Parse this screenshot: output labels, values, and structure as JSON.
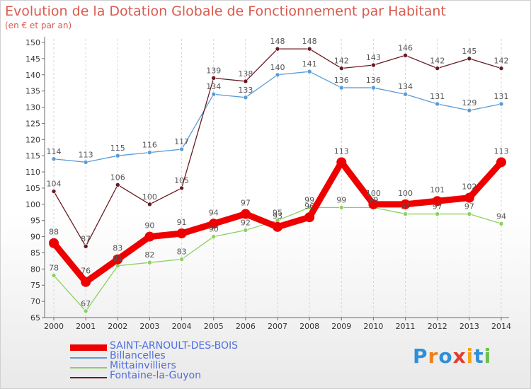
{
  "header": {
    "title": "Evolution de la Dotation Globale de Fonctionnement par Habitant",
    "subtitle": "(en € et par an)"
  },
  "brand": {
    "letters": [
      "P",
      "r",
      "o",
      "x",
      "i",
      "t",
      "i"
    ]
  },
  "colors": {
    "title": "#d95a4e",
    "axis": "#6b6b6b",
    "grid": "#d5d5d5",
    "label": "#555555",
    "legend_text": "#4f6de0",
    "brand": [
      "#2f8fd8",
      "#f07f1d",
      "#2f8fd8",
      "#e23c2c",
      "#f5a21b",
      "#2f8fd8",
      "#6cc04a"
    ]
  },
  "chart_data": {
    "type": "line",
    "title": "Evolution de la Dotation Globale de Fonctionnement par Habitant",
    "subtitle": "(en € et par an)",
    "xlabel": "",
    "ylabel": "",
    "x": [
      "2000",
      "2001",
      "2002",
      "2003",
      "2004",
      "2005",
      "2006",
      "2007",
      "2008",
      "2009",
      "2010",
      "2011",
      "2012",
      "2013",
      "2014"
    ],
    "ylim": [
      65,
      150
    ],
    "yticks": [
      65,
      70,
      75,
      80,
      85,
      90,
      95,
      100,
      105,
      110,
      115,
      120,
      125,
      130,
      135,
      140,
      145,
      150
    ],
    "grid": "vertical dashed",
    "series": [
      {
        "name": "Billancelles",
        "color": "#5b9bd5",
        "emphasis": false,
        "values": [
          114,
          113,
          115,
          116,
          117,
          134,
          133,
          140,
          141,
          136,
          136,
          134,
          131,
          129,
          131
        ]
      },
      {
        "name": "Fontaine-la-Guyon",
        "color": "#6b1a22",
        "emphasis": false,
        "values": [
          104,
          87,
          106,
          100,
          105,
          139,
          138,
          148,
          148,
          142,
          143,
          146,
          142,
          145,
          142
        ]
      },
      {
        "name": "Mittainvilliers",
        "color": "#8bd160",
        "emphasis": false,
        "values": [
          78,
          67,
          81,
          82,
          83,
          90,
          92,
          95,
          99,
          99,
          99,
          97,
          97,
          97,
          94
        ]
      },
      {
        "name": "SAINT-ARNOULT-DES-BOIS",
        "color": "#ee0000",
        "emphasis": true,
        "values": [
          88,
          76,
          83,
          90,
          91,
          94,
          97,
          93,
          96,
          113,
          100,
          100,
          101,
          102,
          113
        ]
      }
    ],
    "legend": {
      "position": "bottom-left",
      "order": [
        "SAINT-ARNOULT-DES-BOIS",
        "Billancelles",
        "Mittainvilliers",
        "Fontaine-la-Guyon"
      ]
    }
  }
}
